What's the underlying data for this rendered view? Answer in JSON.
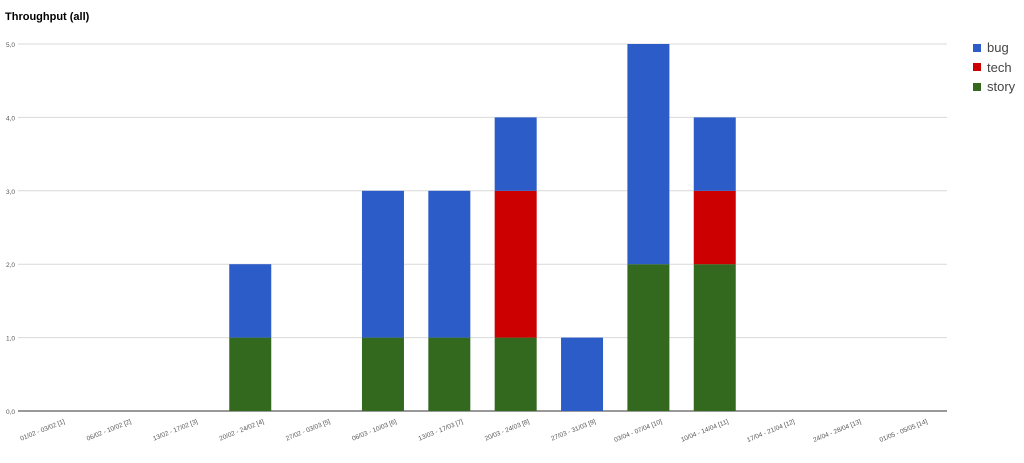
{
  "chart_data": {
    "type": "bar",
    "stacked": true,
    "title": "Throughput (all)",
    "xlabel": "",
    "ylabel": "",
    "ylim": [
      0,
      5
    ],
    "yticks": [
      "0,0",
      "1,0",
      "2,0",
      "3,0",
      "4,0",
      "5,0"
    ],
    "grid": true,
    "legend_position": "right",
    "categories": [
      "01/02 - 03/02 [1]",
      "06/02 - 10/02 [2]",
      "13/02 - 17/02 [3]",
      "20/02 - 24/02 [4]",
      "27/02 - 03/03 [5]",
      "06/03 - 10/03 [6]",
      "13/03 - 17/03 [7]",
      "20/03 - 24/03 [8]",
      "27/03 - 31/03 [9]",
      "03/04 - 07/04 [10]",
      "10/04 - 14/04 [11]",
      "17/04 - 21/04 [12]",
      "24/04 - 28/04 [13]",
      "01/05 - 05/05 [14]"
    ],
    "series": [
      {
        "name": "story",
        "color": "#33691e",
        "values": [
          0,
          0,
          0,
          1,
          0,
          1,
          1,
          1,
          0,
          2,
          2,
          0,
          0,
          0
        ]
      },
      {
        "name": "tech",
        "color": "#cc0000",
        "values": [
          0,
          0,
          0,
          0,
          0,
          0,
          0,
          2,
          0,
          0,
          1,
          0,
          0,
          0
        ]
      },
      {
        "name": "bug",
        "color": "#2b5cc8",
        "values": [
          0,
          0,
          0,
          1,
          0,
          2,
          2,
          1,
          1,
          3,
          1,
          0,
          0,
          0
        ]
      }
    ],
    "legend": [
      {
        "name": "bug",
        "color": "#2b5cc8"
      },
      {
        "name": "tech",
        "color": "#cc0000"
      },
      {
        "name": "story",
        "color": "#33691e"
      }
    ]
  }
}
